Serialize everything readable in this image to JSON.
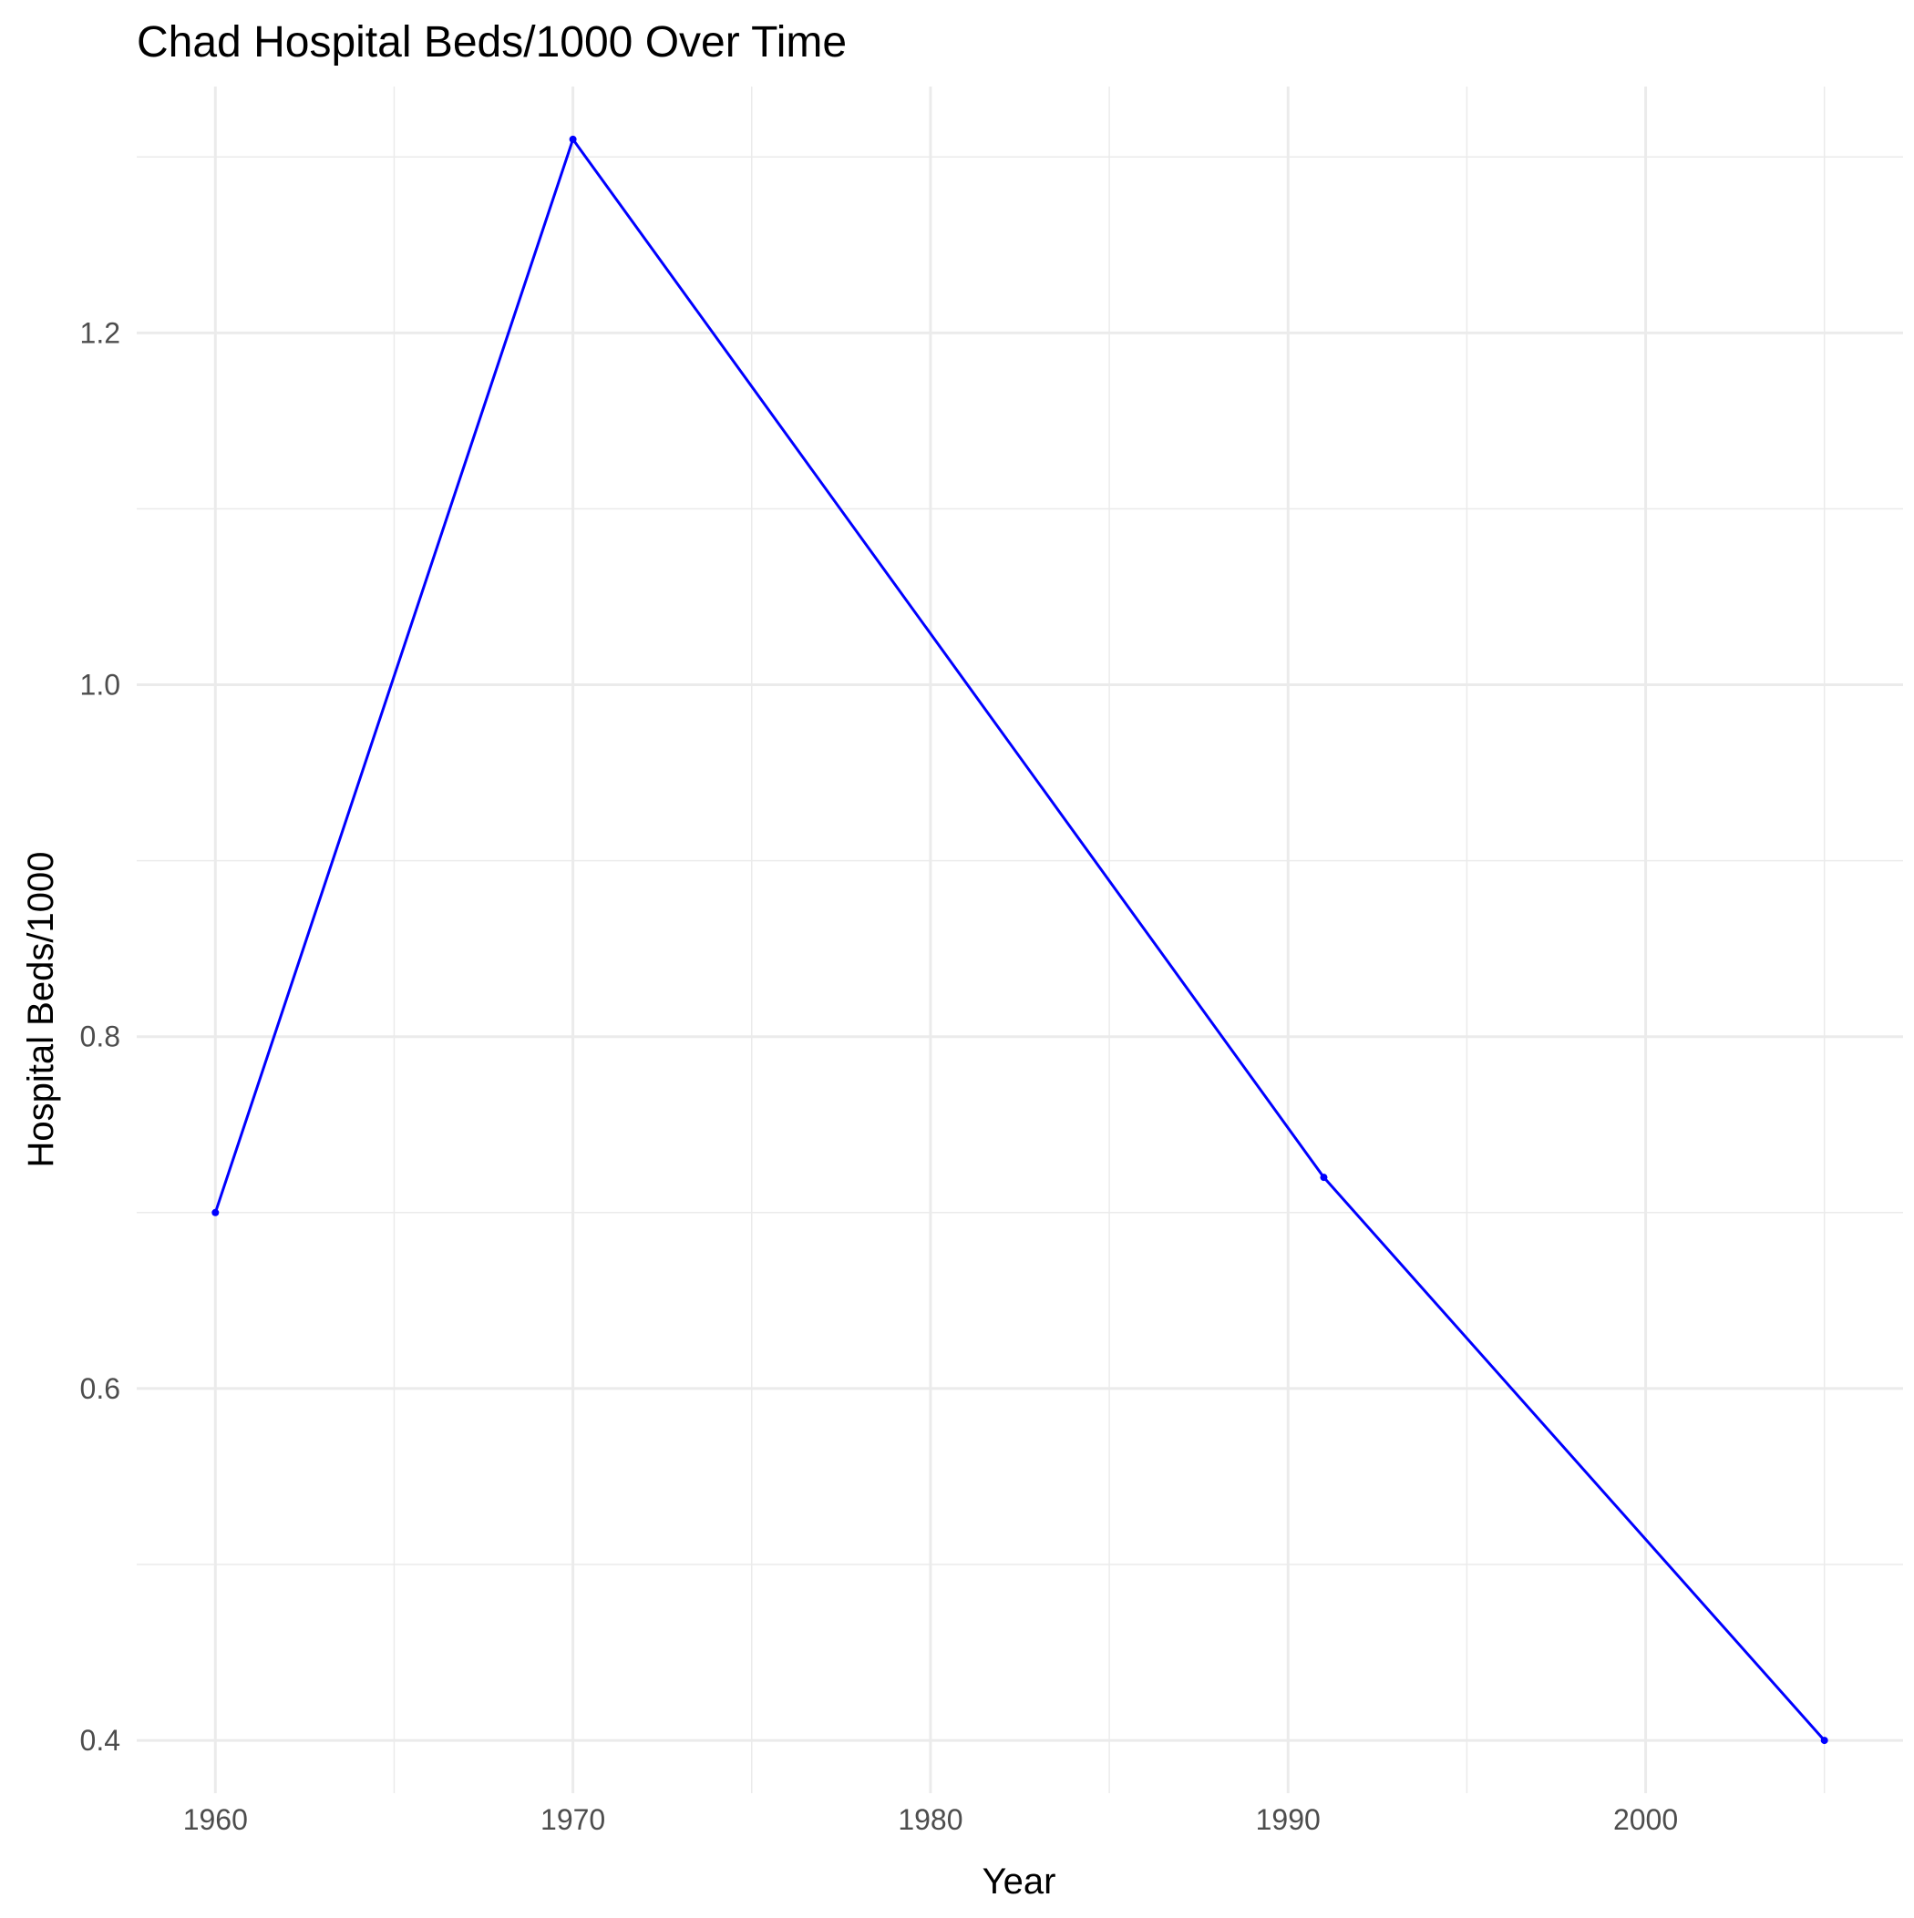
{
  "chart_data": {
    "type": "line",
    "title": "Chad Hospital Beds/1000 Over Time",
    "xlabel": "Year",
    "ylabel": "Hospital Beds/1000",
    "x": [
      1960,
      1970,
      1991,
      2005
    ],
    "series": [
      {
        "values": [
          0.7,
          1.31,
          0.72,
          0.4
        ],
        "color": "#0000ff"
      }
    ],
    "xlim": [
      1957.8,
      2007.2
    ],
    "ylim": [
      0.37,
      1.34
    ],
    "xticks": [
      {
        "value": 1960,
        "label": "1960"
      },
      {
        "value": 1970,
        "label": "1970"
      },
      {
        "value": 1980,
        "label": "1980"
      },
      {
        "value": 1990,
        "label": "1990"
      },
      {
        "value": 2000,
        "label": "2000"
      }
    ],
    "yticks": [
      {
        "value": 0.4,
        "label": "0.4"
      },
      {
        "value": 0.6,
        "label": "0.6"
      },
      {
        "value": 0.8,
        "label": "0.8"
      },
      {
        "value": 1.0,
        "label": "1.0"
      },
      {
        "value": 1.2,
        "label": "1.2"
      }
    ],
    "x_minor_breaks": [
      1965,
      1975,
      1985,
      1995,
      2005
    ],
    "y_minor_breaks": [
      0.5,
      0.7,
      0.9,
      1.1,
      1.3
    ],
    "grid": true,
    "legend": "none",
    "theme": "minimal"
  }
}
